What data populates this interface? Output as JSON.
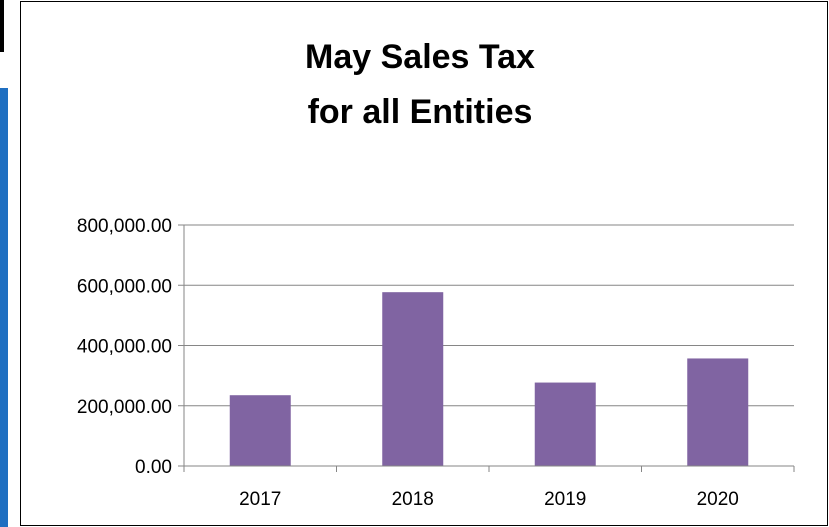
{
  "chart_data": {
    "type": "bar",
    "title_lines": [
      "May Sales Tax",
      "for all Entities"
    ],
    "categories": [
      "2017",
      "2018",
      "2019",
      "2020"
    ],
    "values": [
      235000,
      577000,
      277000,
      357000
    ],
    "ylim": [
      0,
      800000
    ],
    "yticks": [
      0,
      200000,
      400000,
      600000,
      800000
    ],
    "ytick_labels": [
      "0.00",
      "200,000.00",
      "400,000.00",
      "600,000.00",
      "800,000.00"
    ],
    "grid": true,
    "legend": "none",
    "bar_color": "#8064a2"
  }
}
